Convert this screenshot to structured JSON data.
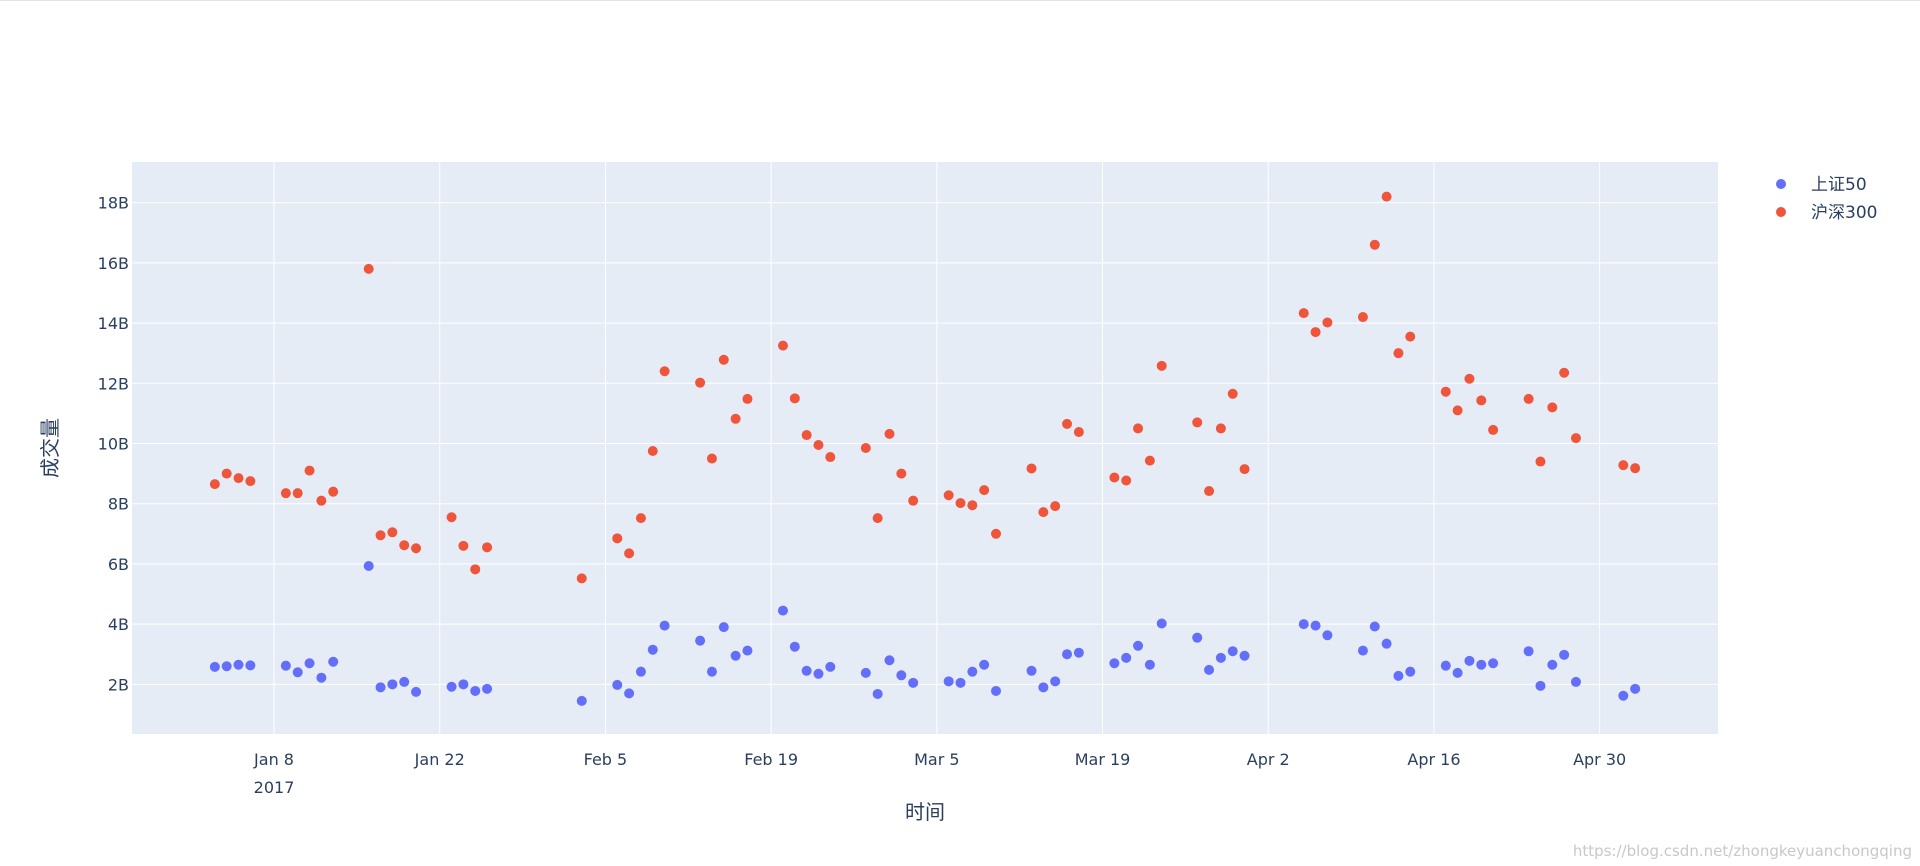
{
  "chart_data": {
    "type": "scatter",
    "title": "",
    "xlabel": "时间",
    "ylabel": "成交量",
    "x_ticks": [
      "Jan 8",
      "Jan 22",
      "Feb 5",
      "Feb 19",
      "Mar 5",
      "Mar 19",
      "Apr 2",
      "Apr 16",
      "Apr 30"
    ],
    "x_tick_dates": [
      "2017-01-08",
      "2017-01-22",
      "2017-02-05",
      "2017-02-19",
      "2017-03-05",
      "2017-03-19",
      "2017-04-02",
      "2017-04-16",
      "2017-04-30"
    ],
    "x_year_label": "2017",
    "xlim": [
      "2016-12-27",
      "2017-05-10"
    ],
    "y_ticks": [
      "2B",
      "4B",
      "6B",
      "8B",
      "10B",
      "12B",
      "14B",
      "16B",
      "18B"
    ],
    "y_tick_values": [
      2,
      4,
      6,
      8,
      10,
      12,
      14,
      16,
      18
    ],
    "ylim": [
      0.35,
      19.35
    ],
    "y_unit": "B",
    "grid": true,
    "legend_position": "top-right",
    "x": [
      "2017-01-03",
      "2017-01-04",
      "2017-01-05",
      "2017-01-06",
      "2017-01-09",
      "2017-01-10",
      "2017-01-11",
      "2017-01-12",
      "2017-01-13",
      "2017-01-16",
      "2017-01-17",
      "2017-01-18",
      "2017-01-19",
      "2017-01-20",
      "2017-01-23",
      "2017-01-24",
      "2017-01-25",
      "2017-01-26",
      "2017-02-03",
      "2017-02-06",
      "2017-02-07",
      "2017-02-08",
      "2017-02-09",
      "2017-02-10",
      "2017-02-13",
      "2017-02-14",
      "2017-02-15",
      "2017-02-16",
      "2017-02-17",
      "2017-02-20",
      "2017-02-21",
      "2017-02-22",
      "2017-02-23",
      "2017-02-24",
      "2017-02-27",
      "2017-02-28",
      "2017-03-01",
      "2017-03-02",
      "2017-03-03",
      "2017-03-06",
      "2017-03-07",
      "2017-03-08",
      "2017-03-09",
      "2017-03-10",
      "2017-03-13",
      "2017-03-14",
      "2017-03-15",
      "2017-03-16",
      "2017-03-17",
      "2017-03-20",
      "2017-03-21",
      "2017-03-22",
      "2017-03-23",
      "2017-03-24",
      "2017-03-27",
      "2017-03-28",
      "2017-03-29",
      "2017-03-30",
      "2017-03-31",
      "2017-04-05",
      "2017-04-06",
      "2017-04-07",
      "2017-04-10",
      "2017-04-11",
      "2017-04-12",
      "2017-04-13",
      "2017-04-14",
      "2017-04-17",
      "2017-04-18",
      "2017-04-19",
      "2017-04-20",
      "2017-04-21",
      "2017-04-24",
      "2017-04-25",
      "2017-04-26",
      "2017-04-27",
      "2017-04-28",
      "2017-05-02",
      "2017-05-03"
    ],
    "series": [
      {
        "name": "上证50",
        "color": "#636efa",
        "values": [
          2.58,
          2.6,
          2.65,
          2.63,
          2.62,
          2.4,
          2.7,
          2.22,
          2.75,
          5.93,
          1.9,
          2.0,
          2.08,
          1.75,
          1.92,
          2.0,
          1.78,
          1.85,
          1.45,
          1.98,
          1.7,
          2.42,
          3.15,
          3.95,
          3.45,
          2.42,
          3.9,
          2.95,
          3.12,
          4.45,
          3.25,
          2.45,
          2.35,
          2.58,
          2.38,
          1.68,
          2.8,
          2.3,
          2.05,
          2.1,
          2.05,
          2.42,
          2.65,
          1.78,
          2.45,
          1.9,
          2.1,
          3.0,
          3.05,
          2.7,
          2.88,
          3.28,
          2.65,
          4.02,
          3.55,
          2.48,
          2.88,
          3.1,
          2.95,
          4.0,
          3.95,
          3.63,
          3.12,
          3.92,
          3.35,
          2.28,
          2.42,
          2.62,
          2.38,
          2.78,
          2.65,
          2.7,
          3.1,
          1.95,
          2.65,
          2.98,
          2.08,
          1.62,
          1.85
        ]
      },
      {
        "name": "沪深300",
        "color": "#ef553b",
        "values": [
          8.65,
          9.0,
          8.85,
          8.75,
          8.35,
          8.35,
          9.1,
          8.1,
          8.4,
          15.8,
          6.95,
          7.05,
          6.62,
          6.52,
          7.55,
          6.6,
          5.82,
          6.55,
          5.52,
          6.85,
          6.35,
          7.52,
          9.75,
          12.4,
          12.02,
          9.5,
          12.78,
          10.82,
          11.48,
          13.25,
          11.5,
          10.28,
          9.95,
          9.55,
          9.85,
          7.52,
          10.32,
          9.0,
          8.1,
          8.28,
          8.02,
          7.95,
          8.45,
          7.0,
          9.17,
          7.72,
          7.92,
          10.65,
          10.38,
          8.87,
          8.77,
          10.5,
          9.43,
          12.58,
          10.7,
          8.42,
          10.5,
          11.65,
          9.15,
          14.33,
          13.7,
          14.02,
          14.2,
          16.6,
          18.2,
          13.0,
          13.55,
          11.72,
          11.1,
          12.15,
          11.43,
          10.45,
          11.48,
          9.4,
          11.2,
          12.35,
          10.18,
          9.28,
          9.18
        ]
      }
    ]
  },
  "watermark": "https://blog.csdn.net/zhongkeyuanchongqing"
}
